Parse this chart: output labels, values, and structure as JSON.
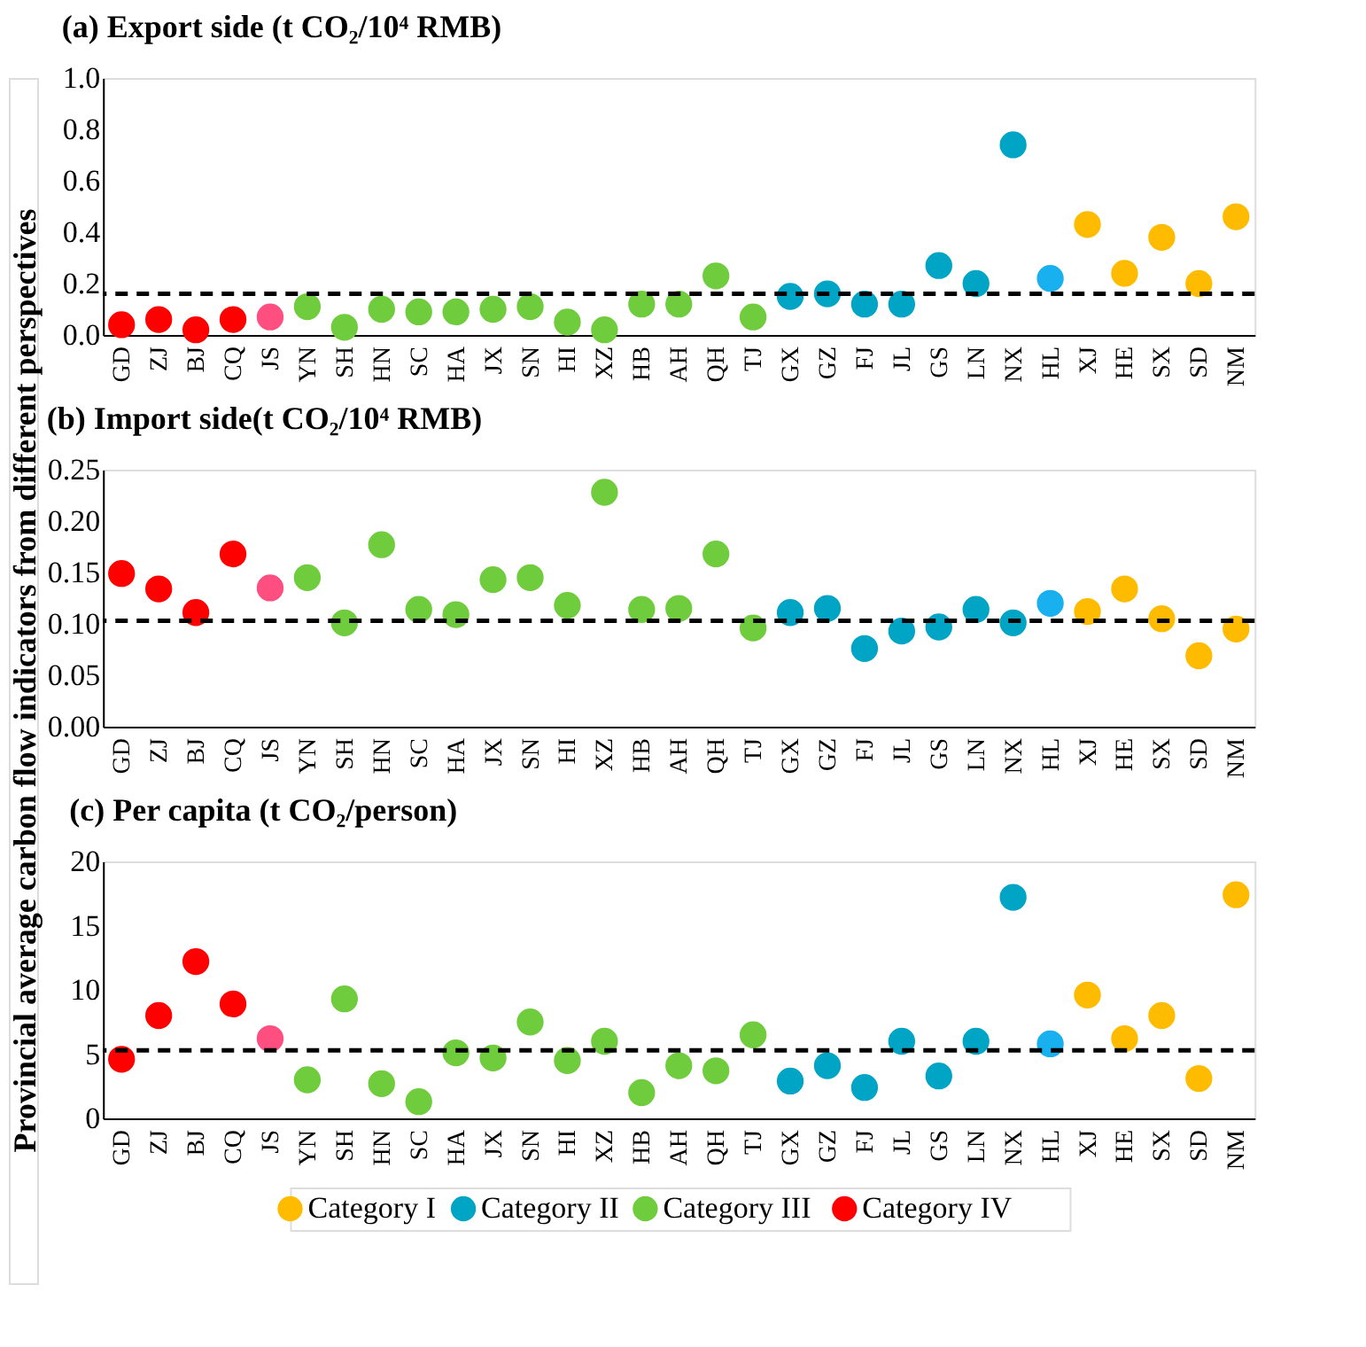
{
  "chart_data": [
    {
      "type": "scatter",
      "title": "(a) Export side (t CO₂/10⁴ RMB)",
      "marker": "circle",
      "legend": "bottom",
      "categories": [
        "GD",
        "ZJ",
        "BJ",
        "CQ",
        "JS",
        "YN",
        "SH",
        "HN",
        "SC",
        "HA",
        "JX",
        "SN",
        "HI",
        "XZ",
        "HB",
        "AH",
        "QH",
        "TJ",
        "GX",
        "GZ",
        "FJ",
        "JL",
        "GS",
        "LN",
        "NX",
        "HL",
        "XJ",
        "HE",
        "SX",
        "SD",
        "NM"
      ],
      "ylim": [
        0,
        1.0
      ],
      "yticks": [
        {
          "value": 0,
          "label": "0.0"
        },
        {
          "value": 0.2,
          "label": "0.2"
        },
        {
          "value": 0.4,
          "label": "0.4"
        },
        {
          "value": 0.6,
          "label": "0.6"
        },
        {
          "value": 0.8,
          "label": "0.8"
        },
        {
          "value": 1.0,
          "label": "1.0"
        }
      ],
      "ref_lines": [
        {
          "axis": "y",
          "value": 0.16,
          "color": "#000000",
          "line_style": "dashed"
        }
      ],
      "series": [
        {
          "name": "Category I",
          "color": "#ffbb00",
          "x": [
            "XJ",
            "HE",
            "SX",
            "SD",
            "NM"
          ],
          "values": [
            0.43,
            0.24,
            0.38,
            0.2,
            0.46
          ]
        },
        {
          "name": "Category II",
          "color": "#00a5c6",
          "x": [
            "GX",
            "GZ",
            "FJ",
            "JL",
            "GS",
            "LN",
            "NX"
          ],
          "values": [
            0.15,
            0.16,
            0.12,
            0.12,
            0.27,
            0.2,
            0.74
          ]
        },
        {
          "name": "Category III",
          "color": "#6fcc3d",
          "x": [
            "YN",
            "SH",
            "HN",
            "SC",
            "HA",
            "JX",
            "SN",
            "HI",
            "XZ",
            "HB",
            "AH",
            "QH",
            "TJ"
          ],
          "values": [
            0.11,
            0.03,
            0.1,
            0.09,
            0.09,
            0.1,
            0.11,
            0.05,
            0.02,
            0.12,
            0.12,
            0.23,
            0.07
          ]
        },
        {
          "name": "Category IV",
          "color": "#ff0000",
          "x": [
            "GD",
            "ZJ",
            "BJ",
            "CQ"
          ],
          "values": [
            0.04,
            0.06,
            0.02,
            0.06
          ]
        },
        {
          "color": "#ff4f81",
          "x": [
            "JS"
          ],
          "values": [
            0.07
          ]
        },
        {
          "color": "#19b0ef",
          "x": [
            "HL"
          ],
          "values": [
            0.22
          ]
        }
      ]
    },
    {
      "type": "scatter",
      "title": "(b) Import side(t CO₂/10⁴ RMB)",
      "marker": "circle",
      "ylabel": "Provincial average carbon flow indicators from different perspectives",
      "categories": [
        "GD",
        "ZJ",
        "BJ",
        "CQ",
        "JS",
        "YN",
        "SH",
        "HN",
        "SC",
        "HA",
        "JX",
        "SN",
        "HI",
        "XZ",
        "HB",
        "AH",
        "QH",
        "TJ",
        "GX",
        "GZ",
        "FJ",
        "JL",
        "GS",
        "LN",
        "NX",
        "HL",
        "XJ",
        "HE",
        "SX",
        "SD",
        "NM"
      ],
      "ylim": [
        0,
        0.25
      ],
      "yticks": [
        {
          "value": 0,
          "label": "0.00"
        },
        {
          "value": 0.05,
          "label": "0.05"
        },
        {
          "value": 0.1,
          "label": "0.10"
        },
        {
          "value": 0.15,
          "label": "0.15"
        },
        {
          "value": 0.2,
          "label": "0.20"
        },
        {
          "value": 0.25,
          "label": "0.25"
        }
      ],
      "ref_lines": [
        {
          "axis": "y",
          "value": 0.103,
          "color": "#000000",
          "line_style": "dashed"
        }
      ],
      "series": [
        {
          "color": "#ffbb00",
          "x": [
            "XJ",
            "HE",
            "SX",
            "SD",
            "NM"
          ],
          "values": [
            0.112,
            0.134,
            0.105,
            0.069,
            0.095
          ]
        },
        {
          "color": "#00a5c6",
          "x": [
            "GX",
            "GZ",
            "FJ",
            "JL",
            "GS",
            "LN",
            "NX"
          ],
          "values": [
            0.111,
            0.115,
            0.076,
            0.093,
            0.097,
            0.114,
            0.101
          ]
        },
        {
          "color": "#6fcc3d",
          "x": [
            "YN",
            "SH",
            "HN",
            "SC",
            "HA",
            "JX",
            "SN",
            "HI",
            "XZ",
            "HB",
            "AH",
            "QH",
            "TJ"
          ],
          "values": [
            0.145,
            0.101,
            0.177,
            0.114,
            0.109,
            0.143,
            0.145,
            0.118,
            0.228,
            0.114,
            0.115,
            0.168,
            0.096
          ]
        },
        {
          "color": "#ff0000",
          "x": [
            "GD",
            "ZJ",
            "BJ",
            "CQ"
          ],
          "values": [
            0.149,
            0.134,
            0.111,
            0.168
          ]
        },
        {
          "color": "#ff4f81",
          "x": [
            "JS"
          ],
          "values": [
            0.135
          ]
        },
        {
          "color": "#19b0ef",
          "x": [
            "HL"
          ],
          "values": [
            0.12
          ]
        }
      ]
    },
    {
      "type": "scatter",
      "title": "(c) Per capita (t CO₂/person)",
      "marker": "circle",
      "categories": [
        "GD",
        "ZJ",
        "BJ",
        "CQ",
        "JS",
        "YN",
        "SH",
        "HN",
        "SC",
        "HA",
        "JX",
        "SN",
        "HI",
        "XZ",
        "HB",
        "AH",
        "QH",
        "TJ",
        "GX",
        "GZ",
        "FJ",
        "JL",
        "GS",
        "LN",
        "NX",
        "HL",
        "XJ",
        "HE",
        "SX",
        "SD",
        "NM"
      ],
      "ylim": [
        0,
        20
      ],
      "yticks": [
        0,
        5,
        10,
        15,
        20
      ],
      "ref_lines": [
        {
          "axis": "y",
          "value": 5.3,
          "color": "#000000",
          "line_style": "dashed"
        }
      ],
      "series": [
        {
          "color": "#ffbb00",
          "x": [
            "XJ",
            "HE",
            "SX",
            "SD",
            "NM"
          ],
          "values": [
            9.6,
            6.2,
            8.0,
            3.1,
            17.4
          ]
        },
        {
          "color": "#00a5c6",
          "x": [
            "GX",
            "GZ",
            "FJ",
            "JL",
            "GS",
            "LN",
            "NX"
          ],
          "values": [
            2.9,
            4.1,
            2.4,
            6.0,
            3.3,
            6.0,
            17.2
          ]
        },
        {
          "color": "#6fcc3d",
          "x": [
            "YN",
            "SH",
            "HN",
            "SC",
            "HA",
            "JX",
            "SN",
            "HI",
            "XZ",
            "HB",
            "AH",
            "QH",
            "TJ"
          ],
          "values": [
            3.0,
            9.3,
            2.7,
            1.3,
            5.1,
            4.7,
            7.5,
            4.5,
            6.0,
            2.0,
            4.1,
            3.7,
            6.5
          ]
        },
        {
          "color": "#ff0000",
          "x": [
            "GD",
            "ZJ",
            "BJ",
            "CQ"
          ],
          "values": [
            4.6,
            8.0,
            12.2,
            8.9
          ]
        },
        {
          "color": "#ff4f81",
          "x": [
            "JS"
          ],
          "values": [
            6.2
          ]
        },
        {
          "color": "#19b0ef",
          "x": [
            "HL"
          ],
          "values": [
            5.8
          ]
        }
      ]
    }
  ]
}
